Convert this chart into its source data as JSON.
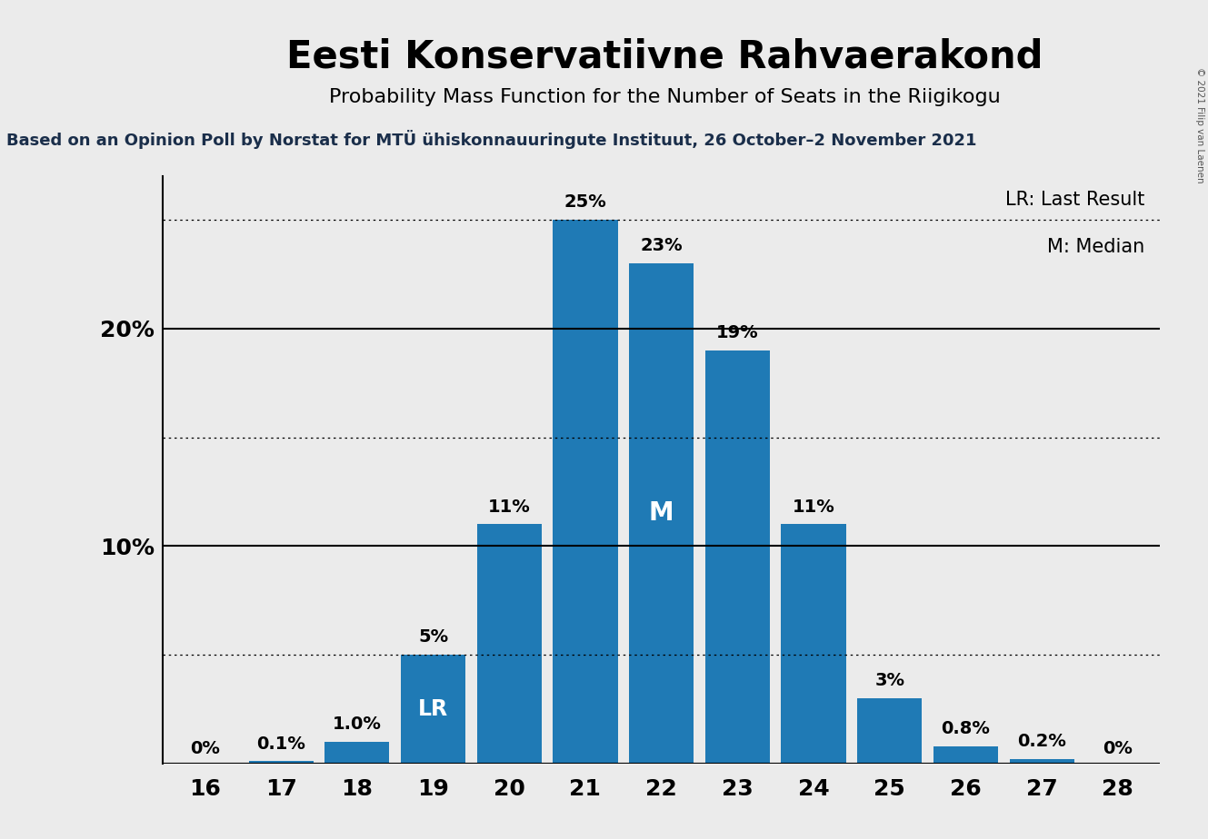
{
  "title": "Eesti Konservatiivne Rahvaerakond",
  "subtitle": "Probability Mass Function for the Number of Seats in the Riigikogu",
  "source_text": "Based on an Opinion Poll by Norstat for MTÜ ühiskonnauuringute Instituut, 26 October–2 November 2021",
  "copyright_text": "© 2021 Filip van Laenen",
  "categories": [
    16,
    17,
    18,
    19,
    20,
    21,
    22,
    23,
    24,
    25,
    26,
    27,
    28
  ],
  "values": [
    0.0,
    0.1,
    1.0,
    5.0,
    11.0,
    25.0,
    23.0,
    19.0,
    11.0,
    3.0,
    0.8,
    0.2,
    0.0
  ],
  "labels": [
    "0%",
    "0.1%",
    "1.0%",
    "LR",
    "11%",
    "25%",
    "23%",
    "19%",
    "11%",
    "3%",
    "0.8%",
    "0.2%",
    "0%"
  ],
  "bar_color": "#1f7ab5",
  "background_color": "#ebebeb",
  "black_bar_color": "#111111",
  "last_result_seat": 19,
  "median_seat": 22,
  "legend_lr": "LR: Last Result",
  "legend_m": "M: Median",
  "ylim": [
    0,
    27
  ],
  "solid_lines": [
    0,
    10,
    20
  ],
  "dotted_lines": [
    5,
    15,
    25
  ],
  "title_fontsize": 30,
  "subtitle_fontsize": 16,
  "source_fontsize": 13,
  "bar_label_fontsize": 14,
  "axis_label_fontsize": 18,
  "legend_fontsize": 14,
  "source_color": "#1a2e4a",
  "copyright_color": "#555555"
}
